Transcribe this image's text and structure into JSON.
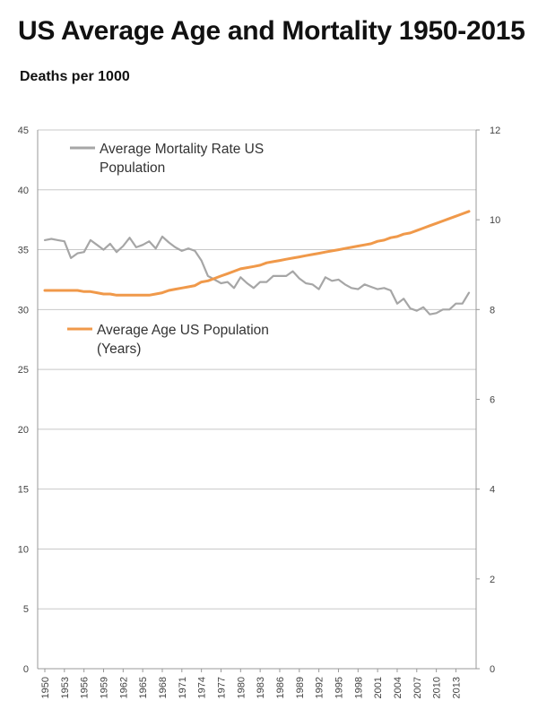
{
  "chart_data": {
    "type": "line",
    "title": "US Average Age and Mortality 1950-2015",
    "subtitle": "Deaths per 1000",
    "x": [
      1950,
      1951,
      1952,
      1953,
      1954,
      1955,
      1956,
      1957,
      1958,
      1959,
      1960,
      1961,
      1962,
      1963,
      1964,
      1965,
      1966,
      1967,
      1968,
      1969,
      1970,
      1971,
      1972,
      1973,
      1974,
      1975,
      1976,
      1977,
      1978,
      1979,
      1980,
      1981,
      1982,
      1983,
      1984,
      1985,
      1986,
      1987,
      1988,
      1989,
      1990,
      1991,
      1992,
      1993,
      1994,
      1995,
      1996,
      1997,
      1998,
      1999,
      2000,
      2001,
      2002,
      2003,
      2004,
      2005,
      2006,
      2007,
      2008,
      2009,
      2010,
      2011,
      2012,
      2013,
      2014,
      2015
    ],
    "xticks": [
      "1950",
      "1953",
      "1956",
      "1959",
      "1962",
      "1965",
      "1968",
      "1971",
      "1974",
      "1977",
      "1980",
      "1983",
      "1986",
      "1989",
      "1992",
      "1995",
      "1998",
      "2001",
      "2004",
      "2007",
      "2010",
      "2013"
    ],
    "yleft": {
      "ticks": [
        "0",
        "5",
        "10",
        "15",
        "20",
        "25",
        "30",
        "35",
        "40",
        "45"
      ],
      "lim": [
        0,
        45
      ]
    },
    "yright": {
      "ticks": [
        "0",
        "2",
        "4",
        "6",
        "8",
        "10",
        "12"
      ],
      "lim": [
        0,
        12
      ]
    },
    "grid": true,
    "series": [
      {
        "name": "Average Mortality Rate US Population",
        "axis": "left",
        "color": "#a6a6a6",
        "values": [
          35.8,
          35.9,
          35.8,
          35.7,
          34.3,
          34.7,
          34.8,
          35.8,
          35.4,
          35.0,
          35.5,
          34.8,
          35.3,
          36.0,
          35.2,
          35.4,
          35.7,
          35.1,
          36.1,
          35.6,
          35.2,
          34.9,
          35.1,
          34.9,
          34.1,
          32.8,
          32.5,
          32.2,
          32.3,
          31.8,
          32.7,
          32.2,
          31.8,
          32.3,
          32.3,
          32.8,
          32.8,
          32.8,
          33.2,
          32.6,
          32.2,
          32.1,
          31.7,
          32.7,
          32.4,
          32.5,
          32.1,
          31.8,
          31.7,
          32.1,
          31.9,
          31.7,
          31.8,
          31.6,
          30.5,
          30.9,
          30.1,
          29.9,
          30.2,
          29.6,
          29.7,
          30.0,
          30.0,
          30.5,
          30.5,
          31.4
        ]
      },
      {
        "name": "Average Age US Population\n(Years)",
        "axis": "left",
        "color": "#f0994a",
        "values": [
          31.6,
          31.6,
          31.6,
          31.6,
          31.6,
          31.6,
          31.5,
          31.5,
          31.4,
          31.3,
          31.3,
          31.2,
          31.2,
          31.2,
          31.2,
          31.2,
          31.2,
          31.3,
          31.4,
          31.6,
          31.7,
          31.8,
          31.9,
          32.0,
          32.3,
          32.4,
          32.6,
          32.8,
          33.0,
          33.2,
          33.4,
          33.5,
          33.6,
          33.7,
          33.9,
          34.0,
          34.1,
          34.2,
          34.3,
          34.4,
          34.5,
          34.6,
          34.7,
          34.8,
          34.9,
          35.0,
          35.1,
          35.2,
          35.3,
          35.4,
          35.5,
          35.7,
          35.8,
          36.0,
          36.1,
          36.3,
          36.4,
          36.6,
          36.8,
          37.0,
          37.2,
          37.4,
          37.6,
          37.8,
          38.0,
          38.2
        ]
      }
    ],
    "legend": [
      {
        "lines": [
          "Average Mortality Rate US",
          "Population"
        ],
        "color": "#a6a6a6",
        "placement": "top-left"
      },
      {
        "lines": [
          "Average Age US Population",
          "(Years)"
        ],
        "color": "#f0994a",
        "placement": "middle-left"
      }
    ]
  }
}
